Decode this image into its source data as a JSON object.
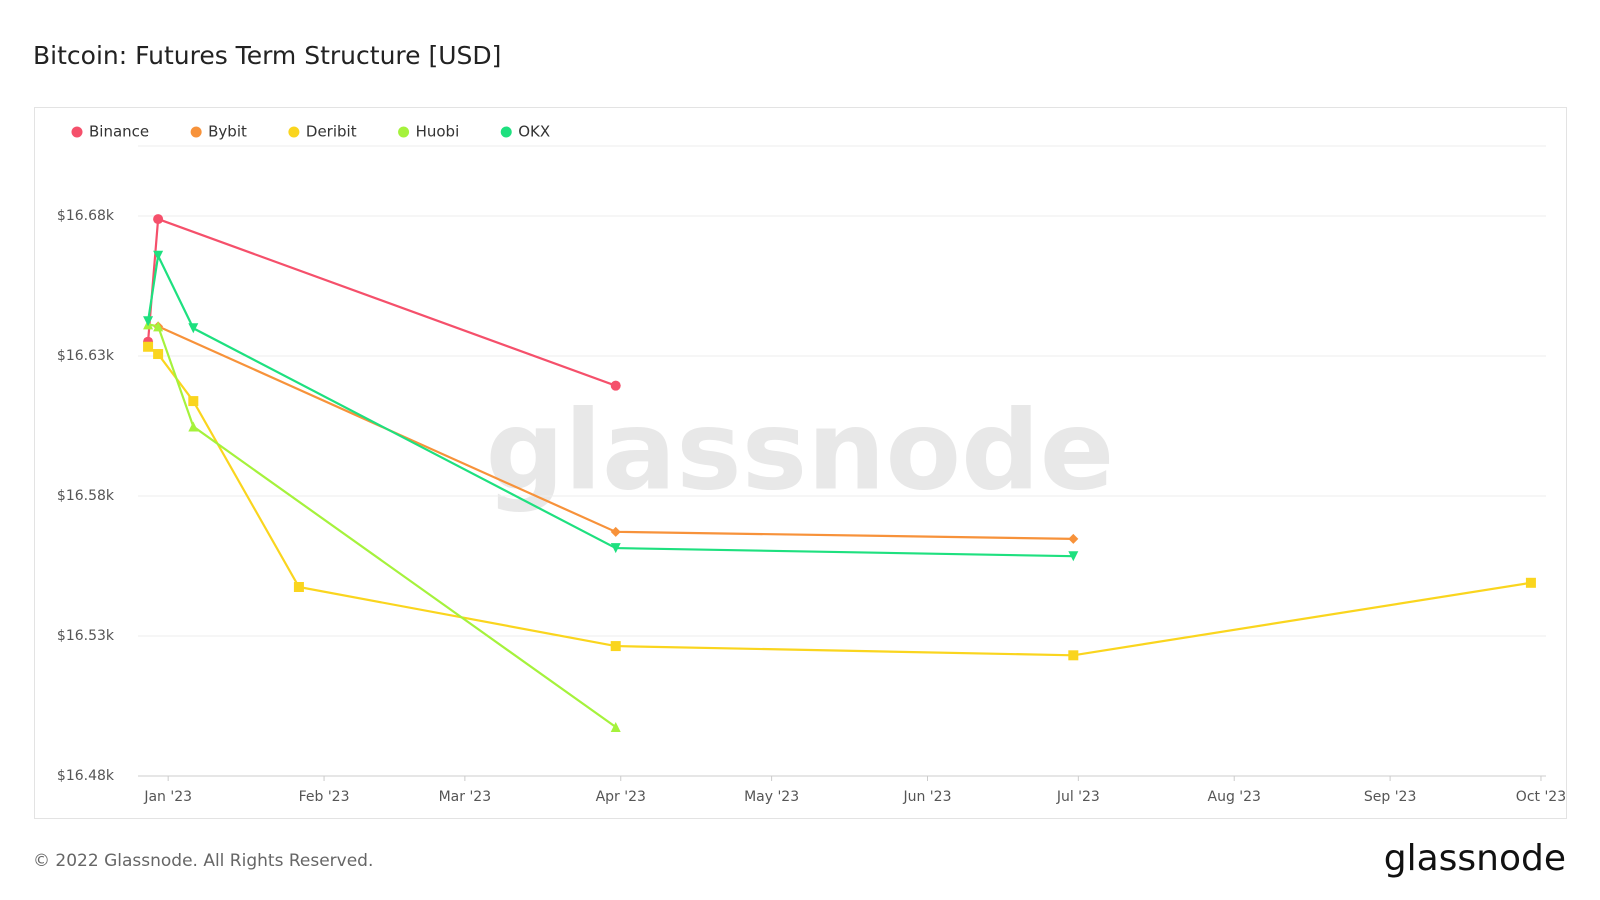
{
  "chart_data": {
    "type": "line",
    "title": "Bitcoin: Futures Term Structure [USD]",
    "watermark": "glassnode",
    "legend": "top-left",
    "grid": true,
    "xlim": [
      "2022-12-26",
      "2023-10-02"
    ],
    "xticks": [
      {
        "value": "2023-01-01",
        "label": "Jan '23"
      },
      {
        "value": "2023-02-01",
        "label": "Feb '23"
      },
      {
        "value": "2023-03-01",
        "label": "Mar '23"
      },
      {
        "value": "2023-04-01",
        "label": "Apr '23"
      },
      {
        "value": "2023-05-01",
        "label": "May '23"
      },
      {
        "value": "2023-06-01",
        "label": "Jun '23"
      },
      {
        "value": "2023-07-01",
        "label": "Jul '23"
      },
      {
        "value": "2023-08-01",
        "label": "Aug '23"
      },
      {
        "value": "2023-09-01",
        "label": "Sep '23"
      },
      {
        "value": "2023-10-01",
        "label": "Oct '23"
      }
    ],
    "ylim": [
      16480,
      16705
    ],
    "yticks": [
      {
        "value": 16480,
        "label": "$16.48k"
      },
      {
        "value": 16530,
        "label": "$16.53k"
      },
      {
        "value": 16580,
        "label": "$16.58k"
      },
      {
        "value": 16630,
        "label": "$16.63k"
      },
      {
        "value": 16680,
        "label": "$16.68k"
      }
    ],
    "series": [
      {
        "name": "Binance",
        "color": "#f5506b",
        "marker": "circle",
        "x": [
          "2022-12-28",
          "2022-12-30",
          "2023-03-31"
        ],
        "values": [
          16635.1,
          16678.9,
          16619.4
        ]
      },
      {
        "name": "Bybit",
        "color": "#f7923a",
        "marker": "diamond",
        "x": [
          "2022-12-30",
          "2023-03-31",
          "2023-06-30"
        ],
        "values": [
          16640.6,
          16567.2,
          16564.7
        ]
      },
      {
        "name": "Deribit",
        "color": "#fad51e",
        "marker": "square",
        "x": [
          "2022-12-28",
          "2022-12-30",
          "2023-01-06",
          "2023-01-27",
          "2023-03-31",
          "2023-06-30",
          "2023-09-29"
        ],
        "values": [
          16633.3,
          16630.7,
          16613.9,
          16547.5,
          16526.4,
          16523.1,
          16549.0
        ]
      },
      {
        "name": "Huobi",
        "color": "#a5f23c",
        "marker": "triangle-up",
        "x": [
          "2022-12-28",
          "2022-12-30",
          "2023-01-06",
          "2023-03-31"
        ],
        "values": [
          16641.3,
          16640.6,
          16604.8,
          16497.5
        ]
      },
      {
        "name": "OKX",
        "color": "#1ee07f",
        "marker": "triangle-down",
        "x": [
          "2022-12-28",
          "2022-12-30",
          "2023-01-06",
          "2023-03-31",
          "2023-06-30"
        ],
        "values": [
          16642.4,
          16665.8,
          16639.9,
          16561.4,
          16558.5
        ]
      }
    ]
  },
  "footer": {
    "copyright": "© 2022 Glassnode. All Rights Reserved.",
    "logo": "glassnode"
  }
}
